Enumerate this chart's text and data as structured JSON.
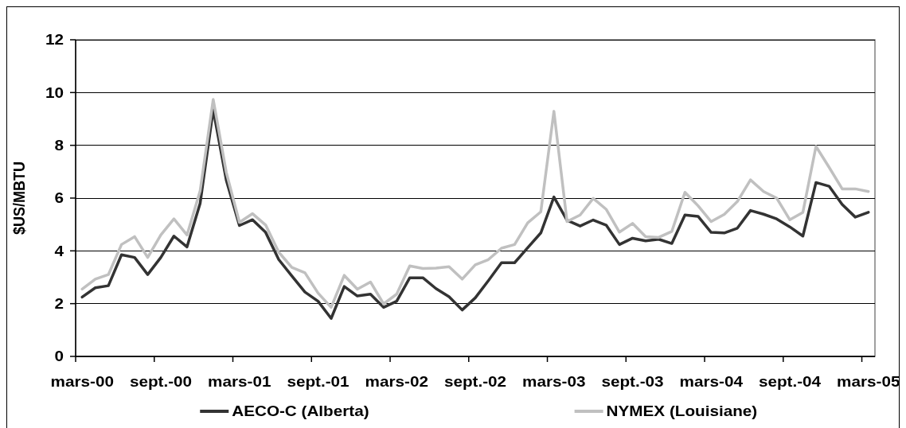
{
  "chart_data": {
    "type": "line",
    "ylabel": "$US/MBTU",
    "categories": [
      "mars-00",
      null,
      null,
      null,
      null,
      null,
      "sept.-00",
      null,
      null,
      null,
      null,
      null,
      "mars-01",
      null,
      null,
      null,
      null,
      null,
      "sept.-01",
      null,
      null,
      null,
      null,
      null,
      "mars-02",
      null,
      null,
      null,
      null,
      null,
      "sept.-02",
      null,
      null,
      null,
      null,
      null,
      "mars-03",
      null,
      null,
      null,
      null,
      null,
      "sept.-03",
      null,
      null,
      null,
      null,
      null,
      "mars-04",
      null,
      null,
      null,
      null,
      null,
      "sept.-04",
      null,
      null,
      null,
      null,
      null,
      "mars-05"
    ],
    "series": [
      {
        "name": "AECO-C (Alberta)",
        "color": "#333333",
        "values": [
          2.25,
          2.6,
          2.68,
          3.85,
          3.75,
          3.1,
          3.75,
          4.56,
          4.15,
          5.8,
          9.35,
          6.67,
          4.96,
          5.18,
          4.7,
          3.67,
          3.05,
          2.44,
          2.09,
          1.44,
          2.65,
          2.29,
          2.36,
          1.86,
          2.09,
          2.98,
          2.98,
          2.57,
          2.26,
          1.76,
          2.22,
          2.87,
          3.55,
          3.55,
          4.12,
          4.68,
          6.04,
          5.16,
          4.94,
          5.17,
          4.97,
          4.24,
          4.48,
          4.38,
          4.44,
          4.28,
          5.36,
          5.31,
          4.7,
          4.68,
          4.86,
          5.53,
          5.39,
          5.21,
          4.91,
          4.56,
          6.59,
          6.45,
          5.76,
          5.28,
          5.46
        ]
      },
      {
        "name": "NYMEX (Louisiane)",
        "color": "#c0c0c0",
        "values": [
          2.55,
          2.93,
          3.1,
          4.24,
          4.54,
          3.75,
          4.6,
          5.21,
          4.6,
          6.27,
          9.74,
          6.97,
          5.08,
          5.41,
          4.98,
          3.95,
          3.37,
          3.17,
          2.4,
          1.86,
          3.07,
          2.55,
          2.82,
          1.99,
          2.36,
          3.43,
          3.33,
          3.35,
          3.4,
          2.93,
          3.47,
          3.67,
          4.1,
          4.24,
          5.06,
          5.48,
          9.29,
          5.11,
          5.36,
          5.99,
          5.57,
          4.71,
          5.04,
          4.54,
          4.51,
          4.74,
          6.22,
          5.71,
          5.11,
          5.38,
          5.87,
          6.69,
          6.25,
          6.0,
          5.18,
          5.46,
          7.96,
          7.17,
          6.35,
          6.35,
          6.25
        ]
      }
    ],
    "ylim": [
      0,
      12
    ],
    "yticks": [
      0,
      2,
      4,
      6,
      8,
      10,
      12
    ],
    "grid": "y",
    "legend": "bottom"
  }
}
